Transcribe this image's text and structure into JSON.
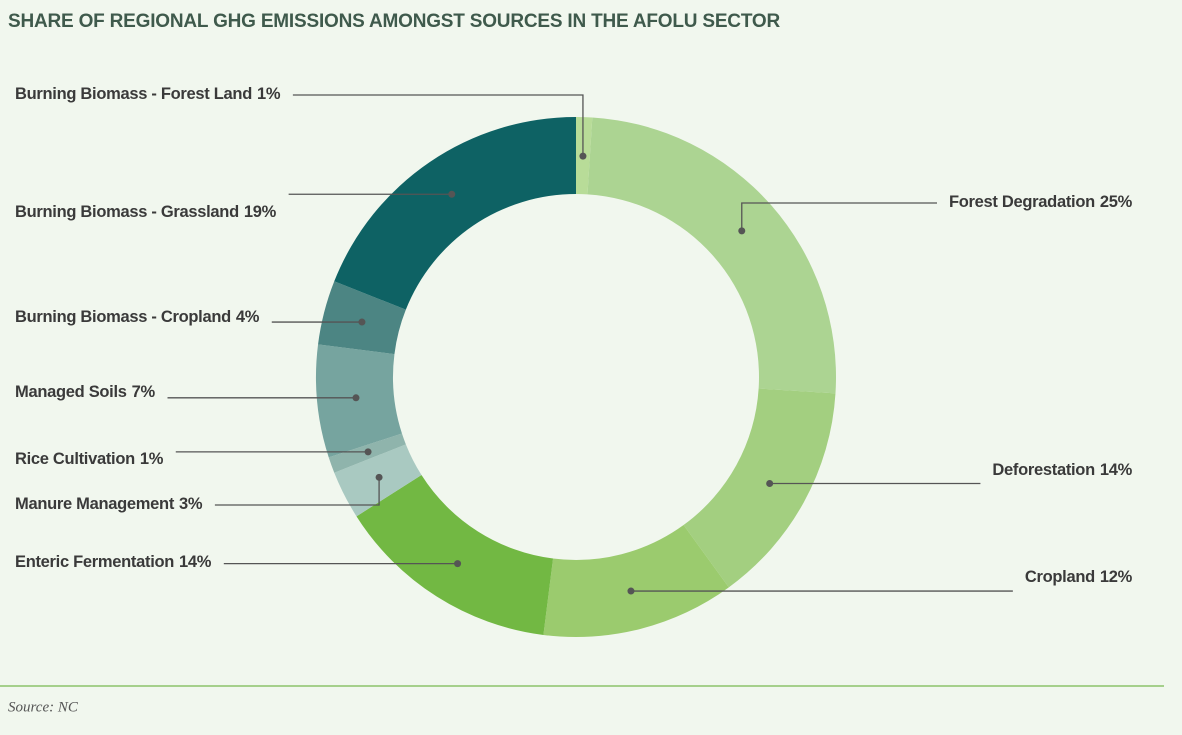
{
  "chart_data": {
    "type": "donut",
    "title": "SHARE OF REGIONAL GHG EMISSIONS AMONGST SOURCES IN THE AFOLU SECTOR",
    "categories": [
      "Burning Biomass - Forest Land",
      "Forest Degradation",
      "Deforestation",
      "Cropland",
      "Enteric Fermentation",
      "Manure Management",
      "Rice Cultivation",
      "Managed Soils",
      "Burning Biomass - Cropland",
      "Burning Biomass - Grassland"
    ],
    "values": [
      1,
      25,
      14,
      12,
      14,
      3,
      1,
      7,
      4,
      19
    ],
    "value_labels": [
      "1%",
      "25%",
      "14%",
      "12%",
      "14%",
      "3%",
      "1%",
      "7%",
      "4%",
      "19%"
    ],
    "colors": [
      "#b8dc98",
      "#acd492",
      "#a3cf80",
      "#9bcb6e",
      "#72b843",
      "#a9c9c1",
      "#8fb4ac",
      "#76a49f",
      "#4c8583",
      "#0e6264"
    ],
    "source": "Source: NC"
  }
}
